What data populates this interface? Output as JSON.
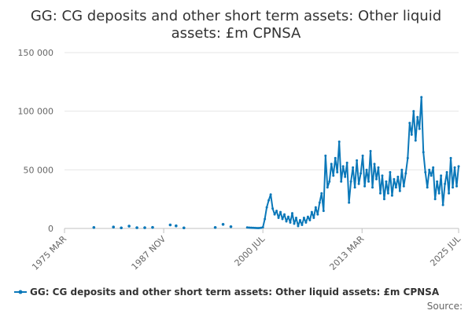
{
  "chart_data": {
    "type": "line",
    "title": "GG: CG deposits and other short term assets: Other liquid assets: £m CPNSA",
    "title_lines": [
      "GG: CG deposits and other short term assets: Other liquid",
      "assets: £m CPNSA"
    ],
    "xlabel": "",
    "ylabel": "",
    "ylim": [
      0,
      150000
    ],
    "y_ticks": [
      0,
      50000,
      100000,
      150000
    ],
    "y_tick_labels": [
      "0",
      "50 000",
      "100 000",
      "150 000"
    ],
    "x_range": [
      "1975-03",
      "2025-07"
    ],
    "x_ticks": [
      "1975-03",
      "1987-11",
      "2000-07",
      "2013-03",
      "2025-07"
    ],
    "x_tick_labels": [
      "1975 MAR",
      "1987 NOV",
      "2000 JUL",
      "2013 MAR",
      "2025 JUL"
    ],
    "grid": true,
    "legend_position": "bottom",
    "series": [
      {
        "name": "GG: CG deposits and other short term assets: Other liquid assets: £m CPNSA",
        "color": "#0b78b9",
        "sparse_points": [
          [
            "1978-12",
            800
          ],
          [
            "1981-06",
            1200
          ],
          [
            "1982-06",
            500
          ],
          [
            "1983-06",
            2000
          ],
          [
            "1984-06",
            600
          ],
          [
            "1985-06",
            600
          ],
          [
            "1986-06",
            900
          ],
          [
            "1988-09",
            3000
          ],
          [
            "1989-06",
            2200
          ],
          [
            "1990-06",
            500
          ],
          [
            "1994-06",
            800
          ],
          [
            "1995-06",
            3500
          ],
          [
            "1996-06",
            1500
          ]
        ],
        "points": [
          [
            "1998-07",
            800
          ],
          [
            "1998-10",
            700
          ],
          [
            "1999-01",
            600
          ],
          [
            "1999-04",
            500
          ],
          [
            "1999-07",
            400
          ],
          [
            "1999-10",
            300
          ],
          [
            "2000-01",
            300
          ],
          [
            "2000-04",
            500
          ],
          [
            "2000-07",
            1000
          ],
          [
            "2000-10",
            8000
          ],
          [
            "2001-01",
            18000
          ],
          [
            "2001-04",
            24000
          ],
          [
            "2001-07",
            29000
          ],
          [
            "2001-10",
            17000
          ],
          [
            "2002-01",
            12000
          ],
          [
            "2002-04",
            15000
          ],
          [
            "2002-07",
            9000
          ],
          [
            "2002-10",
            14000
          ],
          [
            "2003-01",
            8000
          ],
          [
            "2003-04",
            12000
          ],
          [
            "2003-07",
            6000
          ],
          [
            "2003-10",
            10000
          ],
          [
            "2004-01",
            5000
          ],
          [
            "2004-04",
            13000
          ],
          [
            "2004-07",
            4000
          ],
          [
            "2004-10",
            9000
          ],
          [
            "2005-01",
            2000
          ],
          [
            "2005-04",
            7000
          ],
          [
            "2005-07",
            3000
          ],
          [
            "2005-10",
            9000
          ],
          [
            "2006-01",
            5000
          ],
          [
            "2006-04",
            10000
          ],
          [
            "2006-07",
            7000
          ],
          [
            "2006-10",
            14000
          ],
          [
            "2007-01",
            9000
          ],
          [
            "2007-04",
            18000
          ],
          [
            "2007-07",
            12000
          ],
          [
            "2007-10",
            22000
          ],
          [
            "2008-01",
            30000
          ],
          [
            "2008-04",
            15000
          ],
          [
            "2008-07",
            62000
          ],
          [
            "2008-10",
            35000
          ],
          [
            "2009-01",
            40000
          ],
          [
            "2009-04",
            55000
          ],
          [
            "2009-07",
            45000
          ],
          [
            "2009-10",
            60000
          ],
          [
            "2010-01",
            48000
          ],
          [
            "2010-04",
            74000
          ],
          [
            "2010-07",
            40000
          ],
          [
            "2010-10",
            53000
          ],
          [
            "2011-01",
            44000
          ],
          [
            "2011-04",
            56000
          ],
          [
            "2011-07",
            22000
          ],
          [
            "2011-10",
            40000
          ],
          [
            "2012-01",
            52000
          ],
          [
            "2012-04",
            35000
          ],
          [
            "2012-07",
            58000
          ],
          [
            "2012-10",
            38000
          ],
          [
            "2013-01",
            47000
          ],
          [
            "2013-04",
            62000
          ],
          [
            "2013-07",
            36000
          ],
          [
            "2013-10",
            50000
          ],
          [
            "2014-01",
            40000
          ],
          [
            "2014-04",
            66000
          ],
          [
            "2014-07",
            35000
          ],
          [
            "2014-10",
            55000
          ],
          [
            "2015-01",
            42000
          ],
          [
            "2015-04",
            52000
          ],
          [
            "2015-07",
            30000
          ],
          [
            "2015-10",
            45000
          ],
          [
            "2016-01",
            25000
          ],
          [
            "2016-04",
            40000
          ],
          [
            "2016-07",
            30000
          ],
          [
            "2016-10",
            48000
          ],
          [
            "2017-01",
            28000
          ],
          [
            "2017-04",
            42000
          ],
          [
            "2017-07",
            35000
          ],
          [
            "2017-10",
            44000
          ],
          [
            "2018-01",
            32000
          ],
          [
            "2018-04",
            50000
          ],
          [
            "2018-07",
            36000
          ],
          [
            "2018-10",
            47000
          ],
          [
            "2019-01",
            60000
          ],
          [
            "2019-04",
            90000
          ],
          [
            "2019-07",
            80000
          ],
          [
            "2019-10",
            100000
          ],
          [
            "2020-01",
            75000
          ],
          [
            "2020-04",
            95000
          ],
          [
            "2020-07",
            85000
          ],
          [
            "2020-10",
            112000
          ],
          [
            "2021-01",
            65000
          ],
          [
            "2021-04",
            48000
          ],
          [
            "2021-07",
            35000
          ],
          [
            "2021-10",
            50000
          ],
          [
            "2022-01",
            45000
          ],
          [
            "2022-04",
            52000
          ],
          [
            "2022-07",
            25000
          ],
          [
            "2022-10",
            40000
          ],
          [
            "2023-01",
            30000
          ],
          [
            "2023-04",
            45000
          ],
          [
            "2023-07",
            20000
          ],
          [
            "2023-10",
            38000
          ],
          [
            "2024-01",
            48000
          ],
          [
            "2024-04",
            30000
          ],
          [
            "2024-07",
            60000
          ],
          [
            "2024-10",
            35000
          ],
          [
            "2025-01",
            52000
          ],
          [
            "2025-04",
            36000
          ],
          [
            "2025-07",
            53000
          ]
        ]
      }
    ]
  },
  "legend": {
    "label": "GG: CG deposits and other short term assets: Other liquid assets: £m CPNSA"
  },
  "source": {
    "label": "Source:"
  }
}
